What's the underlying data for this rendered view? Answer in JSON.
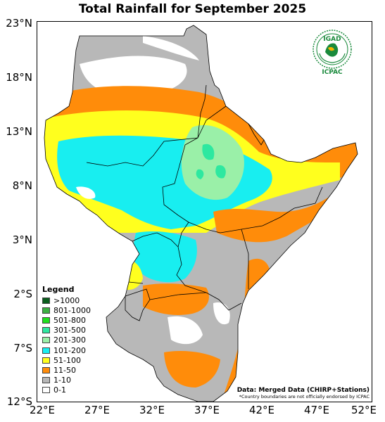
{
  "title": "Total Rainfall for September 2025",
  "y_axis_labels": [
    "23°N",
    "18°N",
    "13°N",
    "8°N",
    "3°N",
    "2°S",
    "7°S",
    "12°S"
  ],
  "x_axis_labels": [
    "22°E",
    "27°E",
    "32°E",
    "37°E",
    "42°E",
    "47°E",
    "52°E"
  ],
  "legend": {
    "title": "Legend",
    "items": [
      {
        "label": ">1000",
        "color": "#0b5d1e"
      },
      {
        "label": "801-1000",
        "color": "#3cb043"
      },
      {
        "label": "501-800",
        "color": "#1ee01e"
      },
      {
        "label": "301-500",
        "color": "#2ee8a0"
      },
      {
        "label": "201-300",
        "color": "#9af0a8"
      },
      {
        "label": "101-200",
        "color": "#18eef0"
      },
      {
        "label": "51-100",
        "color": "#ffff1e"
      },
      {
        "label": "11-50",
        "color": "#ff8c0a"
      },
      {
        "label": "1-10",
        "color": "#b8b8b8"
      },
      {
        "label": "0-1",
        "color": "#ffffff"
      }
    ]
  },
  "logo": {
    "top_text": "IGAD",
    "bottom_text": "ICPAC",
    "brand_color": "#1a8a3c"
  },
  "credit": {
    "source": "Data: Merged Data (CHIRP+Stations)",
    "disclaimer": "*Country boundaries are not officially endorsed by ICPAC"
  }
}
